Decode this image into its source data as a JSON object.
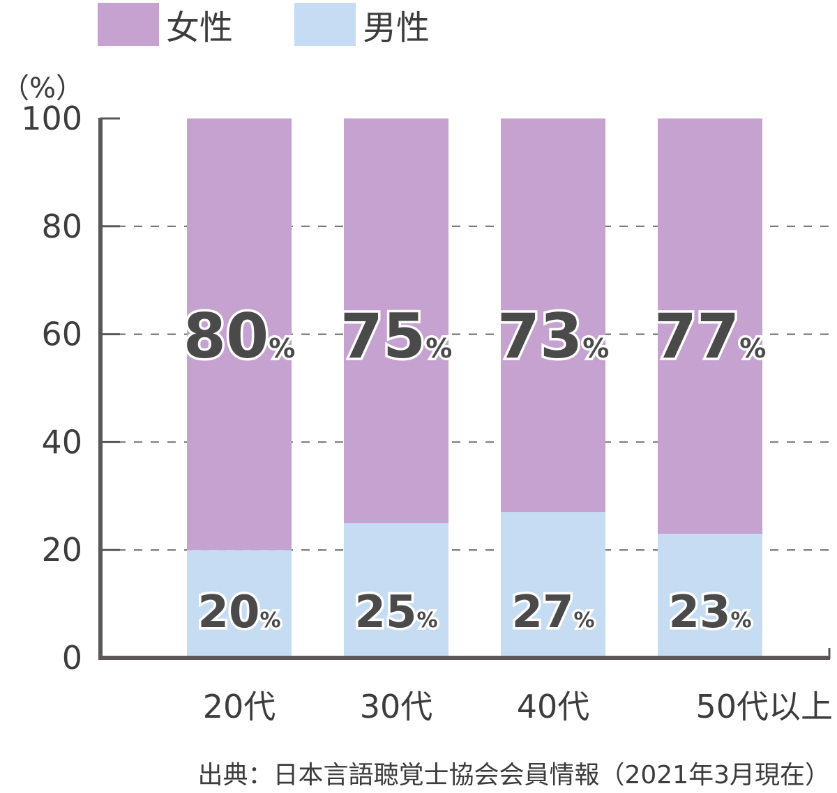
{
  "chart_data": {
    "type": "bar",
    "stacked": true,
    "categories": [
      "20代",
      "30代",
      "40代",
      "50代以上"
    ],
    "series": [
      {
        "name": "男性",
        "color": "#c5dcf3",
        "values": [
          20,
          25,
          27,
          23
        ]
      },
      {
        "name": "女性",
        "color": "#c5a2cf",
        "values": [
          80,
          75,
          73,
          77
        ]
      }
    ],
    "ylabel": "（%）",
    "ylim": [
      0,
      100
    ],
    "yticks": [
      0,
      20,
      40,
      60,
      80,
      100
    ],
    "value_suffix": "%",
    "grid": "dashed-horizontal",
    "legend": "top-left",
    "legend_order": [
      "女性",
      "男性"
    ],
    "source": "出典：日本言語聴覚士協会会員情報（2021年3月現在）",
    "axis_color": "#595757"
  }
}
